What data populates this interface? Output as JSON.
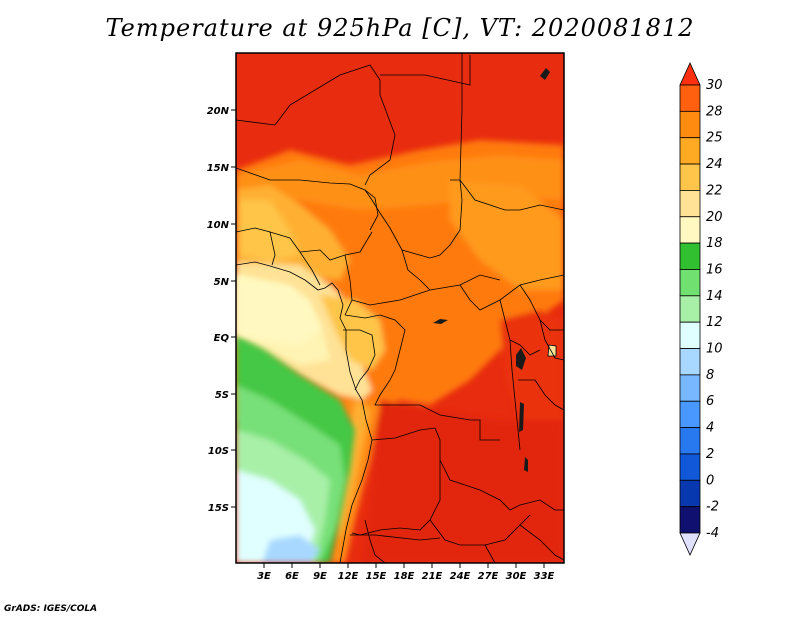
{
  "title": "Temperature at 925hPa [C], VT: 2020081812",
  "credit": "GrADS: IGES/COLA",
  "map": {
    "lon_ticks": [
      "3E",
      "6E",
      "9E",
      "12E",
      "15E",
      "18E",
      "21E",
      "24E",
      "27E",
      "30E",
      "33E"
    ],
    "lat_ticks": [
      "20N",
      "15N",
      "10N",
      "5N",
      "EQ",
      "5S",
      "10S",
      "15S"
    ]
  },
  "colorbar": {
    "levels": [
      "30",
      "28",
      "25",
      "24",
      "22",
      "20",
      "18",
      "16",
      "14",
      "12",
      "10",
      "8",
      "6",
      "4",
      "2",
      "0",
      "-2",
      "-4"
    ],
    "colors": [
      "#ff3010",
      "#ff6010",
      "#ff8c10",
      "#ffaa22",
      "#ffc54a",
      "#ffe296",
      "#fff8c0",
      "#30c030",
      "#70e070",
      "#a8f0a8",
      "#e0ffff",
      "#a8d8ff",
      "#78b8ff",
      "#4898ff",
      "#2878f0",
      "#1058d8",
      "#0838b0",
      "#101070",
      "#e0e0ff"
    ]
  }
}
